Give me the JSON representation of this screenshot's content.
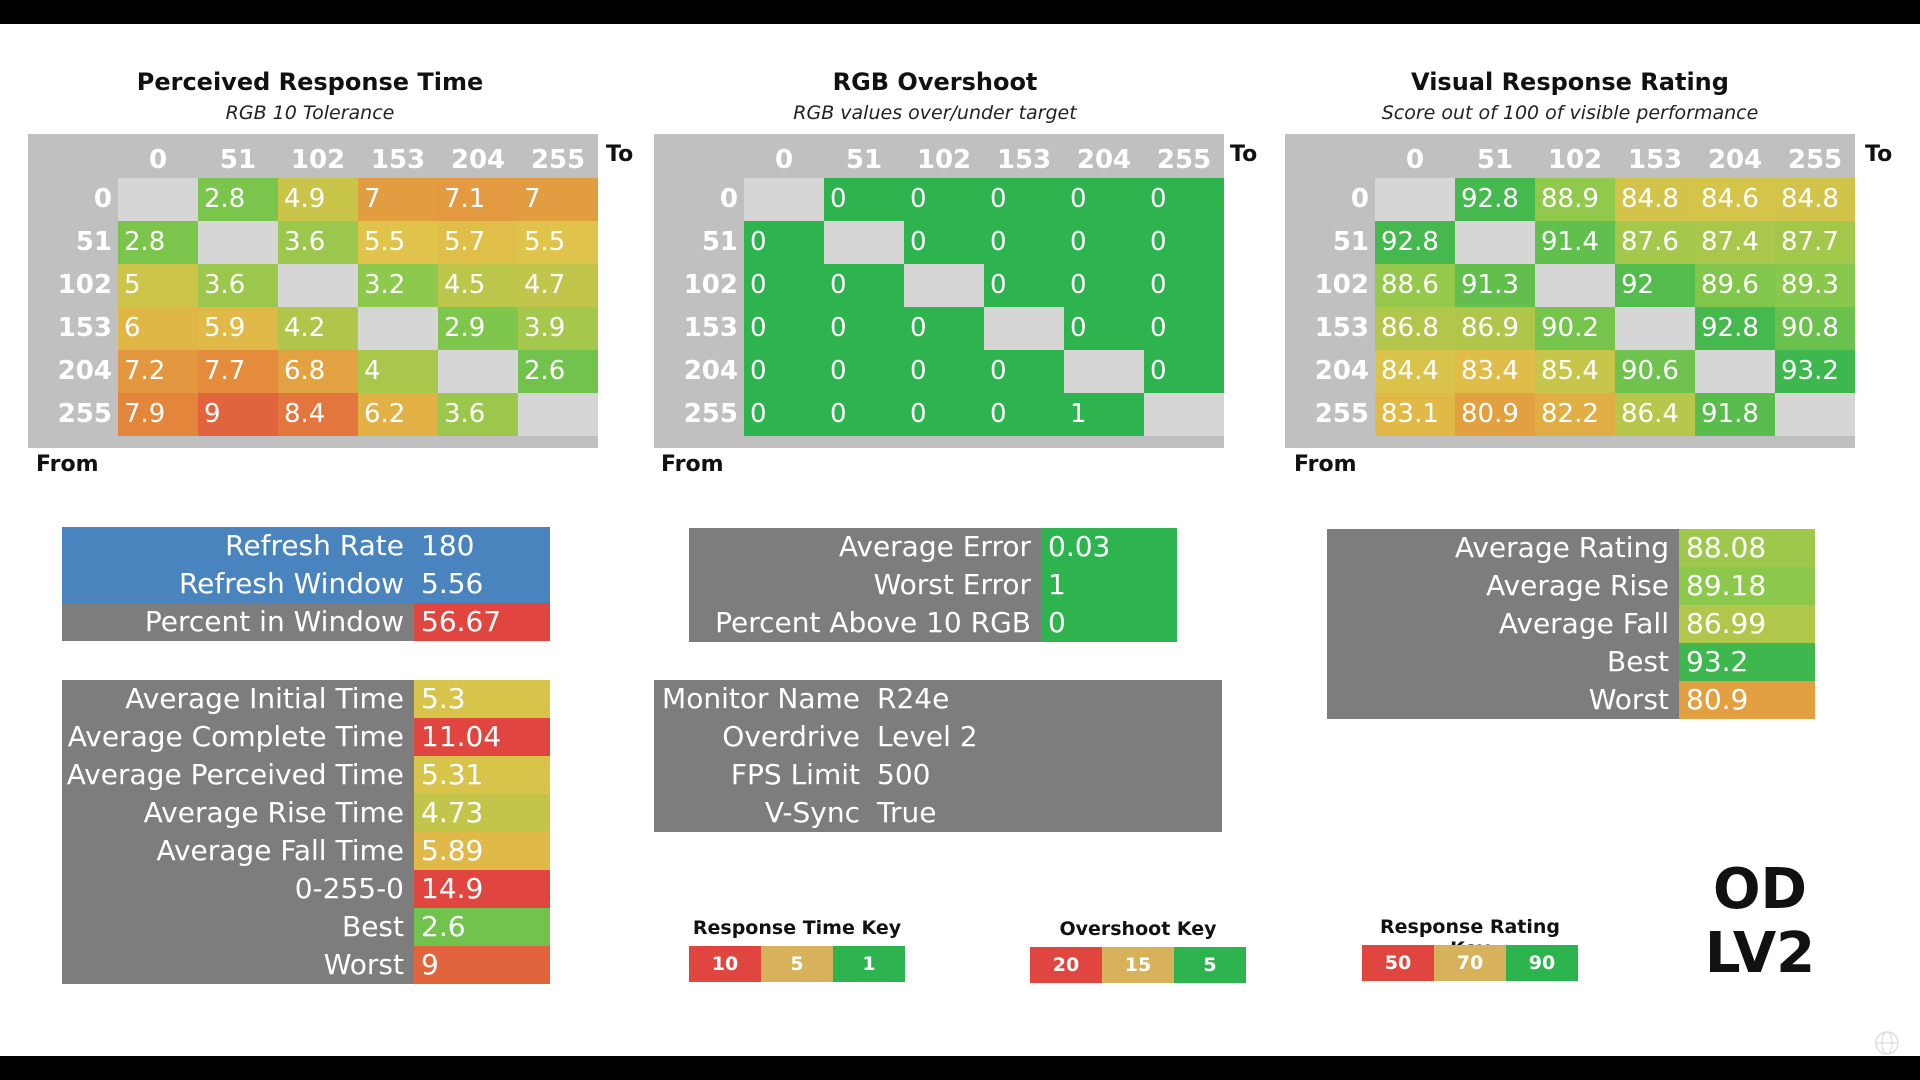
{
  "colors": {
    "diag": "#d6d6d6",
    "gray": "#7d7d7d",
    "header_gray": "#c0c0c0",
    "blue": "#4a84be",
    "red": "#e0463f",
    "tan": "#d8b25a",
    "green": "#2eb44e"
  },
  "chart_data": [
    {
      "type": "heatmap",
      "title": "Perceived Response Time",
      "subtitle": "RGB 10 Tolerance",
      "xlabel": "To",
      "ylabel": "From",
      "columns": [
        "0",
        "51",
        "102",
        "153",
        "204",
        "255"
      ],
      "rows": [
        "0",
        "51",
        "102",
        "153",
        "204",
        "255"
      ],
      "values": [
        [
          null,
          "2.8",
          "4.9",
          "7",
          "7.1",
          "7"
        ],
        [
          "2.8",
          null,
          "3.6",
          "5.5",
          "5.7",
          "5.5"
        ],
        [
          "5",
          "3.6",
          null,
          "3.2",
          "4.5",
          "4.7"
        ],
        [
          "6",
          "5.9",
          "4.2",
          null,
          "2.9",
          "3.9"
        ],
        [
          "7.2",
          "7.7",
          "6.8",
          "4",
          null,
          "2.6"
        ],
        [
          "7.9",
          "9",
          "8.4",
          "6.2",
          "3.6",
          null
        ]
      ],
      "scale": {
        "stops": [
          1,
          5,
          10
        ],
        "direction": "low-good"
      }
    },
    {
      "type": "heatmap",
      "title": "RGB Overshoot",
      "subtitle": "RGB values over/under target",
      "xlabel": "To",
      "ylabel": "From",
      "columns": [
        "0",
        "51",
        "102",
        "153",
        "204",
        "255"
      ],
      "rows": [
        "0",
        "51",
        "102",
        "153",
        "204",
        "255"
      ],
      "values": [
        [
          null,
          "0",
          "0",
          "0",
          "0",
          "0"
        ],
        [
          "0",
          null,
          "0",
          "0",
          "0",
          "0"
        ],
        [
          "0",
          "0",
          null,
          "0",
          "0",
          "0"
        ],
        [
          "0",
          "0",
          "0",
          null,
          "0",
          "0"
        ],
        [
          "0",
          "0",
          "0",
          "0",
          null,
          "0"
        ],
        [
          "0",
          "0",
          "0",
          "0",
          "1",
          null
        ]
      ],
      "scale": {
        "stops": [
          5,
          15,
          20
        ],
        "direction": "low-good"
      }
    },
    {
      "type": "heatmap",
      "title": "Visual Response Rating",
      "subtitle": "Score out of 100 of visible performance",
      "xlabel": "To",
      "ylabel": "From",
      "columns": [
        "0",
        "51",
        "102",
        "153",
        "204",
        "255"
      ],
      "rows": [
        "0",
        "51",
        "102",
        "153",
        "204",
        "255"
      ],
      "values": [
        [
          null,
          "92.8",
          "88.9",
          "84.8",
          "84.6",
          "84.8"
        ],
        [
          "92.8",
          null,
          "91.4",
          "87.6",
          "87.4",
          "87.7"
        ],
        [
          "88.6",
          "91.3",
          null,
          "92",
          "89.6",
          "89.3"
        ],
        [
          "86.8",
          "86.9",
          "90.2",
          null,
          "92.8",
          "90.8"
        ],
        [
          "84.4",
          "83.4",
          "85.4",
          "90.6",
          null,
          "93.2"
        ],
        [
          "83.1",
          "80.9",
          "82.2",
          "86.4",
          "91.8",
          null
        ]
      ],
      "scale": {
        "stops": [
          50,
          70,
          90
        ],
        "direction": "high-good"
      }
    }
  ],
  "refresh_box": [
    {
      "label": "Refresh Rate",
      "value": "180",
      "style": "blue",
      "num": null
    },
    {
      "label": "Refresh Window",
      "value": "5.56",
      "style": "blue",
      "num": null
    },
    {
      "label": "Percent in Window",
      "value": "56.67",
      "style": "value",
      "num": 56.67,
      "scale": "pct"
    }
  ],
  "response_stats": [
    {
      "label": "Average Initial Time",
      "value": "5.3",
      "num": 5.3
    },
    {
      "label": "Average Complete Time",
      "value": "11.04",
      "num": 11.04
    },
    {
      "label": "Average Perceived Time",
      "value": "5.31",
      "num": 5.31
    },
    {
      "label": "Average Rise Time",
      "value": "4.73",
      "num": 4.73
    },
    {
      "label": "Average Fall Time",
      "value": "5.89",
      "num": 5.89
    },
    {
      "label": "0-255-0",
      "value": "14.9",
      "num": 14.9
    },
    {
      "label": "Best",
      "value": "2.6",
      "num": 2.6
    },
    {
      "label": "Worst",
      "value": "9",
      "num": 9
    }
  ],
  "overshoot_stats": [
    {
      "label": "Average Error",
      "value": "0.03",
      "num": 0.03
    },
    {
      "label": "Worst Error",
      "value": "1",
      "num": 1
    },
    {
      "label": "Percent Above 10 RGB",
      "value": "0",
      "num": 0
    }
  ],
  "monitor_info": [
    {
      "label": "Monitor Name",
      "value": "R24e"
    },
    {
      "label": "Overdrive",
      "value": "Level 2"
    },
    {
      "label": "FPS Limit",
      "value": "500"
    },
    {
      "label": "V-Sync",
      "value": "True"
    }
  ],
  "rating_stats": [
    {
      "label": "Average Rating",
      "value": "88.08",
      "num": 88.08
    },
    {
      "label": "Average Rise",
      "value": "89.18",
      "num": 89.18
    },
    {
      "label": "Average Fall",
      "value": "86.99",
      "num": 86.99
    },
    {
      "label": "Best",
      "value": "93.2",
      "num": 93.2
    },
    {
      "label": "Worst",
      "value": "80.9",
      "num": 80.9
    }
  ],
  "keys": [
    {
      "title": "Response Time Key",
      "items": [
        "10",
        "5",
        "1"
      ]
    },
    {
      "title": "Overshoot Key",
      "items": [
        "20",
        "15",
        "5"
      ]
    },
    {
      "title": "Response Rating Key",
      "items": [
        "50",
        "70",
        "90"
      ]
    }
  ],
  "od_label": {
    "line1": "OD",
    "line2": "LV2"
  }
}
